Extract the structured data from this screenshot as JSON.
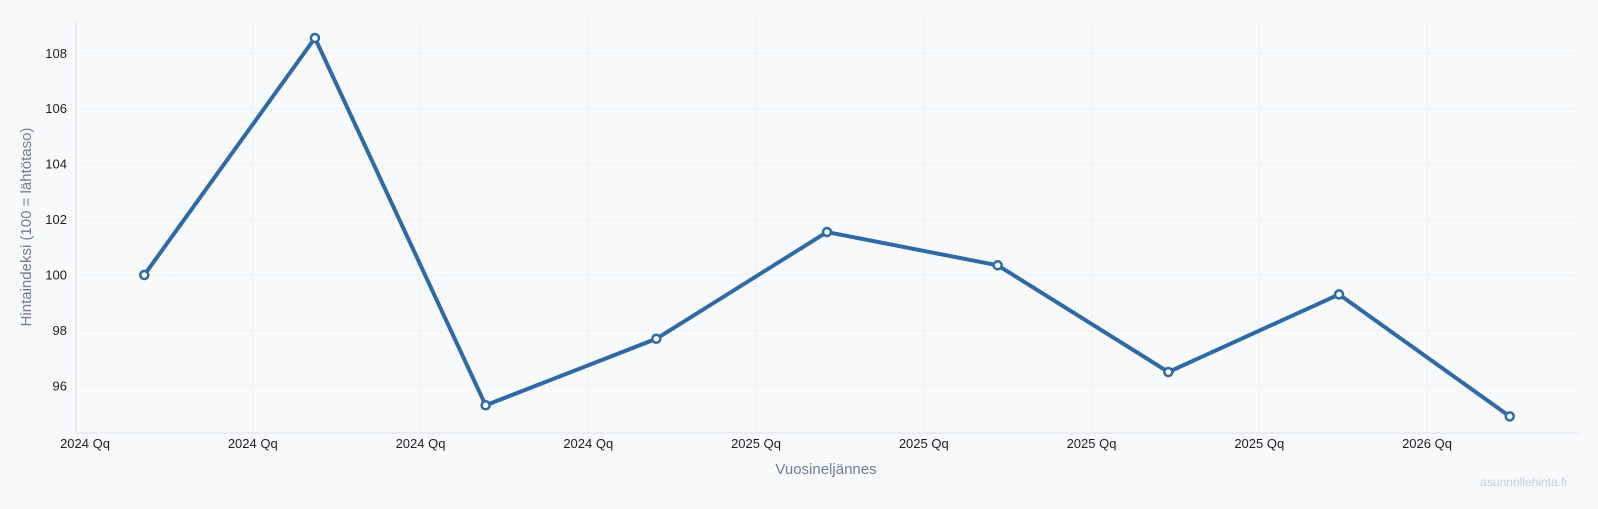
{
  "chart_data": {
    "type": "line",
    "title": "",
    "xlabel": "Vuosineljännes",
    "ylabel": "Hintaindeksi (100 = lähtötaso)",
    "x_tick_labels": [
      "2024 Qq",
      "2024 Qq",
      "2024 Qq",
      "2024 Qq",
      "2025 Qq",
      "2025 Qq",
      "2025 Qq",
      "2025 Qq",
      "2026 Qq"
    ],
    "y_ticks": [
      96,
      98,
      100,
      102,
      104,
      106,
      108
    ],
    "ylim": [
      94.3,
      109.2
    ],
    "xlim": [
      -0.4,
      8.4
    ],
    "grid": true,
    "series": [
      {
        "color": "#2f6aa6",
        "x": [
          0,
          1,
          2,
          3,
          4,
          5,
          6,
          7,
          8
        ],
        "values": [
          100.0,
          108.55,
          95.3,
          97.7,
          101.55,
          100.35,
          96.5,
          99.3,
          94.9
        ]
      }
    ]
  },
  "watermark": "asunnollehinta.fi",
  "colors": {
    "line": "#2f6aa6",
    "marker_fill": "#ffffff",
    "grid": "#eef1f4",
    "axis": "#dde3ea",
    "axis_title": "#6b7f93",
    "background": "#f7f9fb"
  }
}
